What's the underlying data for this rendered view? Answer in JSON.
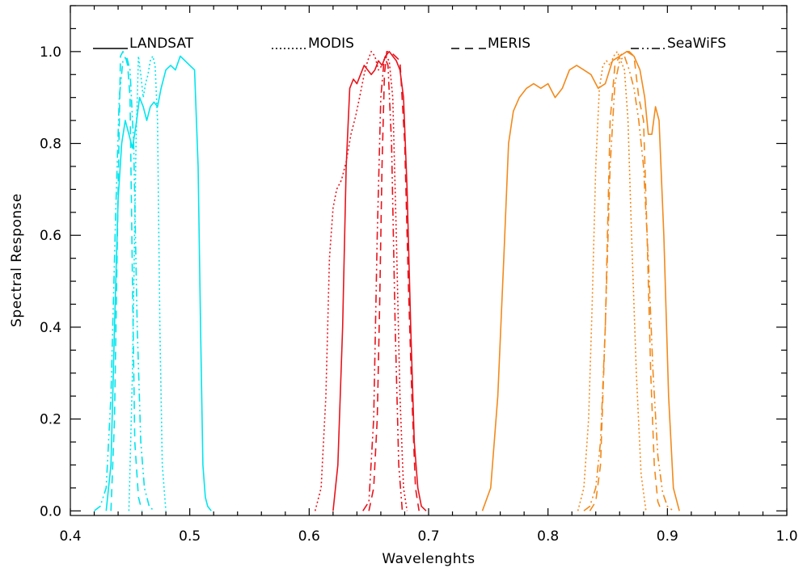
{
  "chart_data": {
    "type": "line",
    "xlabel": "Wavelenghts",
    "ylabel": "Spectral Response",
    "xlim": [
      0.4,
      1.0
    ],
    "ylim": [
      -0.01,
      1.1
    ],
    "xticks": [
      "0.4",
      "0.5",
      "0.6",
      "0.7",
      "0.8",
      "0.9",
      "1.0"
    ],
    "xtick_values": [
      0.4,
      0.5,
      0.6,
      0.7,
      0.8,
      0.9,
      1.0
    ],
    "yticks": [
      "0.0",
      "0.2",
      "0.4",
      "0.6",
      "0.8",
      "1.0"
    ],
    "ytick_values": [
      0.0,
      0.2,
      0.4,
      0.6,
      0.8,
      1.0
    ],
    "legend_position": "top",
    "legend": [
      {
        "name": "LANDSAT",
        "dash": "solid"
      },
      {
        "name": "MODIS",
        "dash": "dotted"
      },
      {
        "name": "MERIS",
        "dash": "dashed"
      },
      {
        "name": "SeaWiFS",
        "dash": "dash-dot-dot"
      }
    ],
    "colors": {
      "blue_band": "#00e5ee",
      "red_band": "#e8141c",
      "nir_band": "#f28a1c"
    },
    "series": [
      {
        "name": "LANDSAT",
        "band": "blue",
        "color": "#00e5ee",
        "dash": "solid",
        "x": [
          0.43,
          0.434,
          0.437,
          0.44,
          0.443,
          0.446,
          0.449,
          0.452,
          0.455,
          0.458,
          0.461,
          0.464,
          0.467,
          0.47,
          0.473,
          0.476,
          0.48,
          0.484,
          0.488,
          0.492,
          0.496,
          0.5,
          0.504,
          0.507,
          0.509,
          0.511,
          0.513,
          0.515,
          0.518
        ],
        "y": [
          0.0,
          0.1,
          0.4,
          0.68,
          0.8,
          0.85,
          0.82,
          0.79,
          0.84,
          0.9,
          0.88,
          0.85,
          0.88,
          0.89,
          0.88,
          0.92,
          0.96,
          0.97,
          0.96,
          0.99,
          0.98,
          0.97,
          0.96,
          0.75,
          0.4,
          0.1,
          0.03,
          0.01,
          0.0
        ]
      },
      {
        "name": "MODIS",
        "band": "blue",
        "color": "#00e5ee",
        "dash": "dotted",
        "x": [
          0.449,
          0.452,
          0.455,
          0.457,
          0.459,
          0.461,
          0.463,
          0.465,
          0.467,
          0.469,
          0.471,
          0.473,
          0.475,
          0.477,
          0.48
        ],
        "y": [
          0.0,
          0.3,
          0.8,
          0.99,
          0.95,
          0.9,
          0.93,
          0.95,
          0.98,
          0.99,
          0.97,
          0.85,
          0.4,
          0.1,
          0.0
        ]
      },
      {
        "name": "MERIS",
        "band": "blue",
        "color": "#00e5ee",
        "dash": "dashed",
        "x": [
          0.434,
          0.437,
          0.44,
          0.442,
          0.444,
          0.446,
          0.448,
          0.45,
          0.452,
          0.454,
          0.457,
          0.46
        ],
        "y": [
          0.0,
          0.2,
          0.7,
          0.99,
          1.0,
          0.99,
          0.97,
          0.9,
          0.5,
          0.15,
          0.03,
          0.0
        ]
      },
      {
        "name": "SeaWiFS",
        "band": "blue",
        "color": "#00e5ee",
        "dash": "dash-dot-dot",
        "x": [
          0.42,
          0.425,
          0.43,
          0.434,
          0.438,
          0.441,
          0.444,
          0.447,
          0.45,
          0.453,
          0.456,
          0.459,
          0.462,
          0.466,
          0.47
        ],
        "y": [
          0.0,
          0.01,
          0.05,
          0.25,
          0.65,
          0.9,
          0.98,
          0.99,
          0.96,
          0.8,
          0.4,
          0.15,
          0.05,
          0.01,
          0.0
        ]
      },
      {
        "name": "LANDSAT",
        "band": "red",
        "color": "#e8141c",
        "dash": "solid",
        "x": [
          0.62,
          0.624,
          0.628,
          0.631,
          0.634,
          0.637,
          0.64,
          0.643,
          0.646,
          0.649,
          0.652,
          0.655,
          0.658,
          0.661,
          0.664,
          0.667,
          0.67,
          0.673,
          0.676,
          0.679,
          0.682,
          0.685,
          0.688,
          0.691,
          0.694,
          0.698
        ],
        "y": [
          0.0,
          0.1,
          0.4,
          0.75,
          0.92,
          0.94,
          0.93,
          0.95,
          0.97,
          0.96,
          0.95,
          0.96,
          0.98,
          0.97,
          0.99,
          1.0,
          0.99,
          0.98,
          0.96,
          0.9,
          0.7,
          0.4,
          0.15,
          0.05,
          0.01,
          0.0
        ]
      },
      {
        "name": "MODIS",
        "band": "red",
        "color": "#e8141c",
        "dash": "dotted",
        "x": [
          0.605,
          0.61,
          0.614,
          0.617,
          0.62,
          0.623,
          0.627,
          0.631,
          0.635,
          0.639,
          0.643,
          0.646,
          0.649,
          0.652,
          0.655,
          0.658,
          0.661,
          0.664,
          0.667,
          0.67,
          0.673,
          0.676,
          0.679,
          0.682
        ],
        "y": [
          0.0,
          0.05,
          0.25,
          0.55,
          0.66,
          0.7,
          0.72,
          0.76,
          0.82,
          0.86,
          0.91,
          0.95,
          0.98,
          1.0,
          0.99,
          0.96,
          0.97,
          0.99,
          0.98,
          0.9,
          0.6,
          0.25,
          0.05,
          0.0
        ]
      },
      {
        "name": "MERIS",
        "band": "red",
        "color": "#e8141c",
        "dash": "dashed",
        "x": [
          0.65,
          0.654,
          0.657,
          0.659,
          0.661,
          0.663,
          0.665,
          0.668,
          0.672,
          0.676,
          0.68,
          0.683,
          0.686,
          0.689,
          0.692
        ],
        "y": [
          0.0,
          0.05,
          0.2,
          0.45,
          0.75,
          0.95,
          1.0,
          1.0,
          0.99,
          0.98,
          0.8,
          0.5,
          0.25,
          0.05,
          0.0
        ]
      },
      {
        "name": "SeaWiFS",
        "band": "red",
        "color": "#e8141c",
        "dash": "dash-dot-dot",
        "x": [
          0.645,
          0.65,
          0.654,
          0.657,
          0.66,
          0.663,
          0.666,
          0.669,
          0.672,
          0.675,
          0.678
        ],
        "y": [
          0.0,
          0.02,
          0.2,
          0.6,
          0.9,
          0.99,
          0.97,
          0.8,
          0.4,
          0.1,
          0.0
        ]
      },
      {
        "name": "LANDSAT",
        "band": "nir",
        "color": "#f28a1c",
        "dash": "solid",
        "x": [
          0.745,
          0.752,
          0.758,
          0.763,
          0.767,
          0.771,
          0.776,
          0.782,
          0.788,
          0.794,
          0.8,
          0.806,
          0.812,
          0.818,
          0.824,
          0.83,
          0.836,
          0.842,
          0.848,
          0.854,
          0.86,
          0.866,
          0.872,
          0.877,
          0.881,
          0.884,
          0.887,
          0.89,
          0.893,
          0.897,
          0.901,
          0.905,
          0.91
        ],
        "y": [
          0.0,
          0.05,
          0.25,
          0.55,
          0.8,
          0.87,
          0.9,
          0.92,
          0.93,
          0.92,
          0.93,
          0.9,
          0.92,
          0.96,
          0.97,
          0.96,
          0.95,
          0.92,
          0.93,
          0.98,
          0.99,
          1.0,
          0.99,
          0.96,
          0.9,
          0.82,
          0.82,
          0.88,
          0.85,
          0.6,
          0.25,
          0.05,
          0.0
        ]
      },
      {
        "name": "MODIS",
        "band": "nir",
        "color": "#f28a1c",
        "dash": "dotted",
        "x": [
          0.825,
          0.83,
          0.834,
          0.837,
          0.84,
          0.843,
          0.846,
          0.849,
          0.852,
          0.855,
          0.858,
          0.861,
          0.864,
          0.867,
          0.87,
          0.874,
          0.878,
          0.882
        ],
        "y": [
          0.0,
          0.05,
          0.2,
          0.45,
          0.75,
          0.92,
          0.97,
          0.98,
          0.97,
          0.99,
          1.0,
          0.98,
          0.96,
          0.85,
          0.6,
          0.3,
          0.08,
          0.0
        ]
      },
      {
        "name": "MERIS",
        "band": "nir",
        "color": "#f28a1c",
        "dash": "dashed",
        "x": [
          0.835,
          0.84,
          0.844,
          0.848,
          0.852,
          0.856,
          0.86,
          0.864,
          0.868,
          0.872,
          0.876,
          0.88,
          0.883,
          0.886,
          0.889,
          0.892,
          0.895
        ],
        "y": [
          0.0,
          0.02,
          0.1,
          0.4,
          0.85,
          0.97,
          0.99,
          1.0,
          1.0,
          0.99,
          0.9,
          0.85,
          0.6,
          0.3,
          0.1,
          0.02,
          0.0
        ]
      },
      {
        "name": "SeaWiFS",
        "band": "nir",
        "color": "#f28a1c",
        "dash": "dash-dot-dot",
        "x": [
          0.83,
          0.835,
          0.84,
          0.844,
          0.848,
          0.852,
          0.856,
          0.86,
          0.864,
          0.868,
          0.872,
          0.876,
          0.88,
          0.884,
          0.888,
          0.892,
          0.896,
          0.9,
          0.905
        ],
        "y": [
          0.0,
          0.01,
          0.05,
          0.15,
          0.4,
          0.75,
          0.93,
          0.98,
          0.99,
          0.96,
          0.92,
          0.85,
          0.75,
          0.55,
          0.3,
          0.12,
          0.04,
          0.01,
          0.0
        ]
      }
    ]
  }
}
